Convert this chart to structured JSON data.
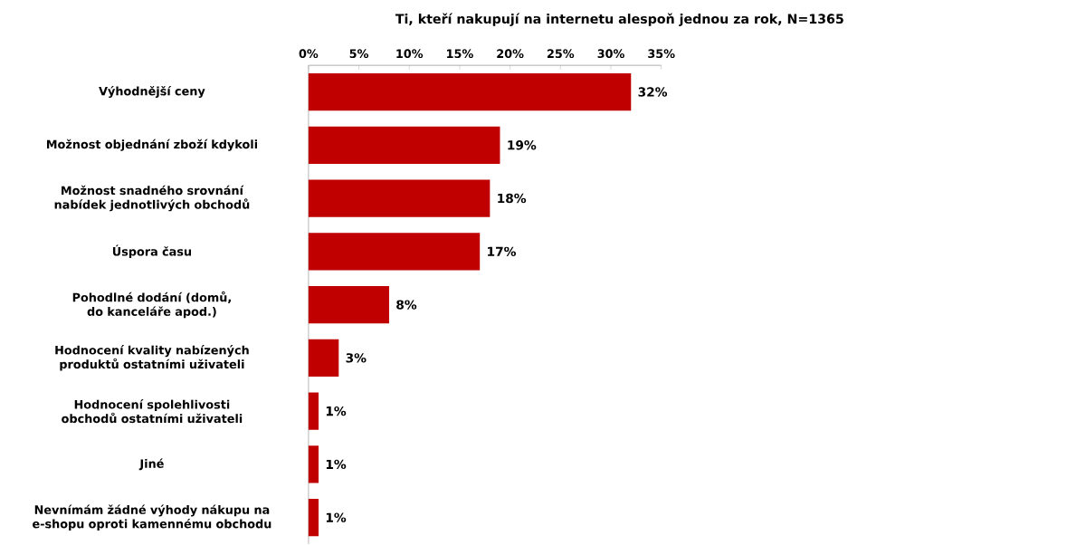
{
  "chart_data": {
    "type": "bar",
    "orientation": "horizontal",
    "title": "Ti, kteří nakupují na internetu alespoň jednou za rok, N=1365",
    "categories": [
      "Výhodnější ceny",
      "Možnost objednání zboží kdykoli",
      "Možnost snadného srovnání nabídek jednotlivých obchodů",
      "Úspora času",
      "Pohodlné dodání (domů, do kanceláře apod.)",
      "Hodnocení kvality nabízených produktů ostatními uživateli",
      "Hodnocení spolehlivosti obchodů ostatními uživateli",
      "Jiné",
      "Nevnímám žádné výhody nákupu na e-shopu oproti kamennému obchodu"
    ],
    "values": [
      32,
      19,
      18,
      17,
      8,
      3,
      1,
      1,
      1
    ],
    "value_labels": [
      "32%",
      "19%",
      "18%",
      "17%",
      "8%",
      "3%",
      "1%",
      "1%",
      "1%"
    ],
    "color": "#c00000",
    "xlim": [
      0,
      35
    ],
    "xticks": [
      {
        "value": 0,
        "label": "0%"
      },
      {
        "value": 5,
        "label": "5%"
      },
      {
        "value": 10,
        "label": "10%"
      },
      {
        "value": 15,
        "label": "15%"
      },
      {
        "value": 20,
        "label": "20%"
      },
      {
        "value": 25,
        "label": "25%"
      },
      {
        "value": 30,
        "label": "30%"
      },
      {
        "value": 35,
        "label": "35%"
      }
    ],
    "grid": false
  }
}
